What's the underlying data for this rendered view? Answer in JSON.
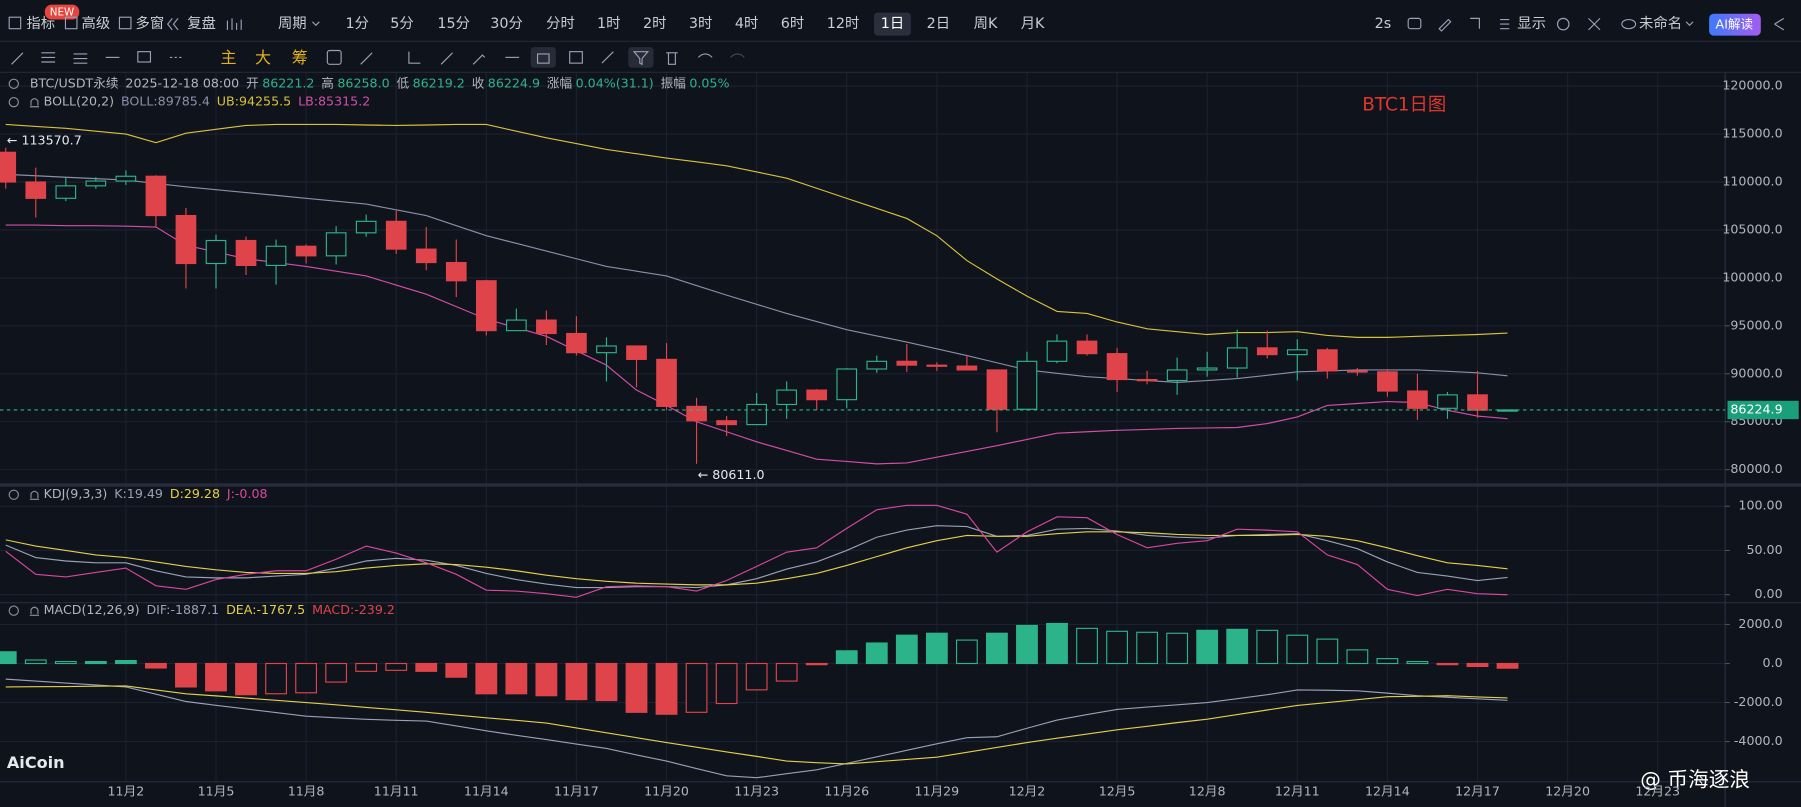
{
  "toolbar": {
    "items": [
      "指标",
      "高级",
      "多窗",
      "复盘",
      "周期"
    ],
    "badge": "NEW",
    "periods": [
      "1分",
      "5分",
      "15分",
      "30分",
      "分时",
      "1时",
      "2时",
      "3时",
      "4时",
      "6时",
      "12时",
      "1日",
      "2日",
      "周K",
      "月K"
    ],
    "selected_period": "1日",
    "refresh": "2s",
    "display": "显示",
    "layout_name": "未命名",
    "ai_button": "AI解读",
    "drawing_tabs": [
      "主",
      "大",
      "筹"
    ]
  },
  "watermark": "AiCoin",
  "author": "@ 币海逐浪",
  "chart_data": [
    {
      "type": "candlestick",
      "title": "BTC1日图",
      "symbol": "BTC/USDT永续",
      "time": "2025-12-18 08:00",
      "info": [
        [
          "开",
          "86221.2"
        ],
        [
          "高",
          "86258.0"
        ],
        [
          "低",
          "86219.2"
        ],
        [
          "收",
          "86224.9"
        ],
        [
          "涨幅",
          "0.04%(31.1)"
        ],
        [
          "振幅",
          "0.05%"
        ]
      ],
      "indicator": "BOLL(20,2)",
      "high_label": "← 113570.7",
      "low_label": "← 80611.0",
      "last_price_label": "86224.9",
      "up_color": "#2db38a",
      "down_color": "#e0444b",
      "categories": [
        null,
        null,
        null,
        null,
        "11月2",
        null,
        null,
        "11月5",
        null,
        null,
        "11月8",
        null,
        null,
        "11月11",
        null,
        null,
        "11月14",
        null,
        null,
        "11月17",
        null,
        null,
        "11月20",
        null,
        null,
        "11月23",
        null,
        null,
        "11月26",
        null,
        null,
        "11月29",
        null,
        null,
        "12月2",
        null,
        null,
        "12月5",
        null,
        null,
        "12月8",
        null,
        null,
        "12月11",
        null,
        null,
        "12月14",
        null,
        null,
        "12月17",
        null,
        null,
        "12月20",
        null,
        null,
        "12月23"
      ],
      "open": [
        113100,
        110000,
        108300,
        109600,
        110100,
        110600,
        106500,
        101500,
        103900,
        101300,
        103300,
        102300,
        104700,
        105900,
        103000,
        101600,
        99700,
        94500,
        95600,
        94200,
        92200,
        92900,
        91500,
        86600,
        85100,
        84700,
        86800,
        88300,
        87300,
        90500,
        91300,
        90900,
        90800,
        90400,
        86300,
        91300,
        93400,
        92100,
        89400,
        89300,
        90400,
        90600,
        92700,
        92000,
        92500,
        90300,
        90200,
        88200,
        86400,
        87800,
        86221.2,
        null,
        null,
        null,
        null,
        null
      ],
      "high": [
        113570.7,
        111500,
        110500,
        110500,
        111200,
        110700,
        107300,
        104500,
        104300,
        104000,
        103500,
        105400,
        106600,
        107000,
        105300,
        104000,
        99800,
        96800,
        96600,
        96000,
        93800,
        92900,
        93200,
        87500,
        85600,
        88000,
        89200,
        88400,
        90600,
        91900,
        93100,
        91200,
        91900,
        90400,
        92300,
        94100,
        94100,
        92700,
        90300,
        91700,
        92300,
        94600,
        94500,
        93600,
        92700,
        90600,
        90500,
        90000,
        88100,
        90300,
        86258,
        null,
        null,
        null,
        null,
        null
      ],
      "low": [
        109300,
        106300,
        108000,
        109300,
        109700,
        105300,
        98900,
        98900,
        100300,
        99300,
        101500,
        101400,
        104300,
        102500,
        100800,
        98000,
        94000,
        94500,
        93000,
        91900,
        89200,
        88600,
        86200,
        80611,
        83500,
        84700,
        85300,
        86200,
        86400,
        90100,
        90200,
        90300,
        90400,
        83900,
        86200,
        91100,
        91900,
        88100,
        88900,
        87800,
        89700,
        89600,
        91600,
        89300,
        89500,
        89800,
        87600,
        85200,
        85300,
        85400,
        86219.2,
        null,
        null,
        null,
        null,
        null
      ],
      "close": [
        110000,
        108300,
        109600,
        110100,
        110600,
        106500,
        101500,
        103900,
        101300,
        103300,
        102300,
        104700,
        105900,
        103000,
        101600,
        99700,
        94500,
        95600,
        94200,
        92200,
        92900,
        91500,
        86600,
        85100,
        84700,
        86800,
        88300,
        87300,
        90500,
        91300,
        90900,
        90800,
        90400,
        86300,
        91300,
        93400,
        92100,
        89400,
        89300,
        90400,
        90600,
        92700,
        92000,
        92500,
        90300,
        90200,
        88200,
        86400,
        87800,
        86200,
        86224.9,
        null,
        null,
        null,
        null,
        null
      ],
      "series": [
        {
          "name": "BOLL:89785.4",
          "color": "#8a8fa8",
          "values": [
            110800,
            110650,
            110500,
            110350,
            110200,
            109850,
            109500,
            109200,
            108900,
            108600,
            108300,
            108000,
            107700,
            107100,
            106500,
            105450,
            104400,
            103600,
            102800,
            102000,
            101200,
            100700,
            100200,
            99200,
            98200,
            97250,
            96300,
            95450,
            94600,
            93950,
            93300,
            92600,
            91900,
            91150,
            90400,
            90050,
            89700,
            89500,
            89300,
            89100,
            89300,
            89500,
            89850,
            90200,
            90300,
            90400,
            90400,
            90400,
            90250,
            90100,
            89785.4,
            null,
            null,
            null,
            null,
            null
          ]
        },
        {
          "name": "UB:94255.5",
          "color": "#d8c23a",
          "values": [
            116000,
            115800,
            115600,
            115300,
            115000,
            114100,
            115100,
            115500,
            115900,
            116000,
            116000,
            116000,
            115950,
            115900,
            115950,
            116000,
            116000,
            115300,
            114600,
            114000,
            113400,
            112950,
            112500,
            112100,
            111700,
            111050,
            110400,
            109350,
            108300,
            107250,
            106200,
            104400,
            101800,
            99900,
            98100,
            96500,
            96300,
            95400,
            94700,
            94400,
            94100,
            94300,
            94300,
            94400,
            94000,
            93800,
            93800,
            93900,
            94000,
            94100,
            94255.5,
            null,
            null,
            null,
            null,
            null
          ]
        },
        {
          "name": "LB:85315.2",
          "color": "#d24fa8",
          "values": [
            105500,
            105500,
            105450,
            105450,
            105400,
            105300,
            103400,
            102700,
            102000,
            101600,
            101200,
            100700,
            100200,
            99250,
            98300,
            97000,
            95700,
            94800,
            93900,
            92400,
            90900,
            88300,
            86700,
            85000,
            83950,
            82900,
            82000,
            81100,
            80850,
            80600,
            80700,
            81300,
            81900,
            82500,
            83150,
            83800,
            83950,
            84100,
            84200,
            84300,
            84350,
            84400,
            84800,
            85500,
            86700,
            86900,
            87100,
            87000,
            86200,
            85600,
            85315.2,
            null,
            null,
            null,
            null,
            null
          ]
        }
      ],
      "ylim": [
        78700,
        121200
      ],
      "yticks": [
        {
          "value": 80000,
          "label": "80000.0"
        },
        {
          "value": 85000,
          "label": "85000.0"
        },
        {
          "value": 90000,
          "label": "90000.0"
        },
        {
          "value": 95000,
          "label": "95000.0"
        },
        {
          "value": 100000,
          "label": "100000.0"
        },
        {
          "value": 105000,
          "label": "105000.0"
        },
        {
          "value": 110000,
          "label": "110000.0"
        },
        {
          "value": 115000,
          "label": "115000.0"
        },
        {
          "value": 120000,
          "label": "120000.0"
        }
      ],
      "grid": true
    },
    {
      "type": "line",
      "indicator": "KDJ(9,3,3)",
      "series": [
        {
          "name": "K:19.49",
          "color": "#9aa0b5",
          "values": [
            56,
            42,
            38,
            36,
            36,
            27,
            20,
            19,
            19,
            21,
            23,
            30,
            38,
            41,
            39,
            33,
            24,
            17,
            12,
            8,
            8,
            9,
            9,
            8,
            11,
            18,
            29,
            37,
            50,
            65,
            73,
            78,
            77,
            66,
            67,
            74,
            75,
            72,
            67,
            65,
            64,
            67,
            68,
            69,
            61,
            52,
            37,
            25,
            21,
            16,
            19.49,
            null,
            null,
            null,
            null,
            null
          ]
        },
        {
          "name": "D:29.28",
          "color": "#e3cf48",
          "values": [
            62,
            55,
            50,
            45,
            42,
            37,
            32,
            28,
            25,
            24,
            24,
            26,
            30,
            33,
            35,
            34,
            31,
            27,
            22,
            18,
            15,
            13,
            12,
            11,
            11,
            13,
            18,
            24,
            33,
            43,
            53,
            61,
            67,
            66,
            66,
            69,
            71,
            71,
            70,
            68,
            67,
            67,
            67,
            68,
            66,
            61,
            53,
            44,
            36,
            33,
            29.28,
            null,
            null,
            null,
            null,
            null
          ]
        },
        {
          "name": "J:-0.08",
          "color": "#d9479f",
          "values": [
            49,
            23,
            20,
            25,
            30,
            10,
            6,
            17,
            23,
            27,
            27,
            40,
            55,
            47,
            36,
            23,
            5,
            4,
            1,
            -3,
            9,
            10,
            9,
            4,
            16,
            32,
            48,
            53,
            75,
            96,
            101,
            101,
            91,
            48,
            71,
            88,
            87,
            68,
            53,
            58,
            61,
            74,
            73,
            71,
            45,
            34,
            6,
            -1,
            6,
            1,
            -0.08,
            null,
            null,
            null,
            null,
            null
          ]
        }
      ],
      "ylim": [
        -7.8,
        116.9
      ],
      "yticks": [
        {
          "value": 0,
          "label": "0.00"
        },
        {
          "value": 50,
          "label": "50.00"
        },
        {
          "value": 100,
          "label": "100.00"
        }
      ],
      "grid": true
    },
    {
      "type": "macd",
      "indicator": "MACD(12,26,9)",
      "series": [
        {
          "name": "DIF:-1887.1",
          "color": "#9aa0b5",
          "values": [
            -800,
            -900,
            -1000,
            -1100,
            -1200,
            -1570,
            -1950,
            -2140,
            -2330,
            -2510,
            -2700,
            -2780,
            -2860,
            -2910,
            -2950,
            -3200,
            -3450,
            -3680,
            -3900,
            -4130,
            -4350,
            -4680,
            -5000,
            -5380,
            -5750,
            -5850,
            -5650,
            -5450,
            -5120,
            -4780,
            -4450,
            -4120,
            -3800,
            -3750,
            -3320,
            -2900,
            -2620,
            -2350,
            -2230,
            -2120,
            -2000,
            -1800,
            -1600,
            -1350,
            -1370,
            -1400,
            -1520,
            -1650,
            -1730,
            -1810,
            -1887.1,
            null,
            null,
            null,
            null,
            null
          ]
        },
        {
          "name": "DEA:-1767.5",
          "color": "#e3cf48",
          "values": [
            -1200,
            -1190,
            -1180,
            -1165,
            -1150,
            -1350,
            -1550,
            -1660,
            -1770,
            -1890,
            -2000,
            -2120,
            -2250,
            -2370,
            -2500,
            -2640,
            -2780,
            -2910,
            -3050,
            -3300,
            -3550,
            -3800,
            -4050,
            -4290,
            -4530,
            -4760,
            -5000,
            -5080,
            -5150,
            -5030,
            -4920,
            -4800,
            -4550,
            -4300,
            -4050,
            -3830,
            -3620,
            -3400,
            -3220,
            -3030,
            -2850,
            -2620,
            -2380,
            -2150,
            -2000,
            -1850,
            -1700,
            -1680,
            -1650,
            -1710,
            -1767.5,
            null,
            null,
            null,
            null,
            null
          ]
        },
        {
          "name": "MACD:-239.2",
          "color": "#e0444b",
          "up_color": "#2db38a",
          "values": [
            600,
            180,
            100,
            100,
            150,
            -230,
            -1200,
            -1400,
            -1600,
            -1550,
            -1500,
            -950,
            -400,
            -350,
            -400,
            -700,
            -1550,
            -1550,
            -1650,
            -1850,
            -1900,
            -2500,
            -2600,
            -2500,
            -2050,
            -1350,
            -900,
            -50,
            650,
            1050,
            1450,
            1550,
            1200,
            1550,
            1950,
            2050,
            1800,
            1650,
            1600,
            1550,
            1700,
            1750,
            1700,
            1450,
            1250,
            700,
            250,
            100,
            -50,
            -150,
            -239.2,
            null,
            null,
            null,
            null,
            null
          ]
        }
      ],
      "ylim": [
        -6000,
        3000
      ],
      "yticks": [
        {
          "value": -4000,
          "label": "-4000.0"
        },
        {
          "value": -2000,
          "label": "-2000.0"
        },
        {
          "value": 0,
          "label": "0.0"
        },
        {
          "value": 2000,
          "label": "2000.0"
        }
      ],
      "grid": true
    }
  ]
}
